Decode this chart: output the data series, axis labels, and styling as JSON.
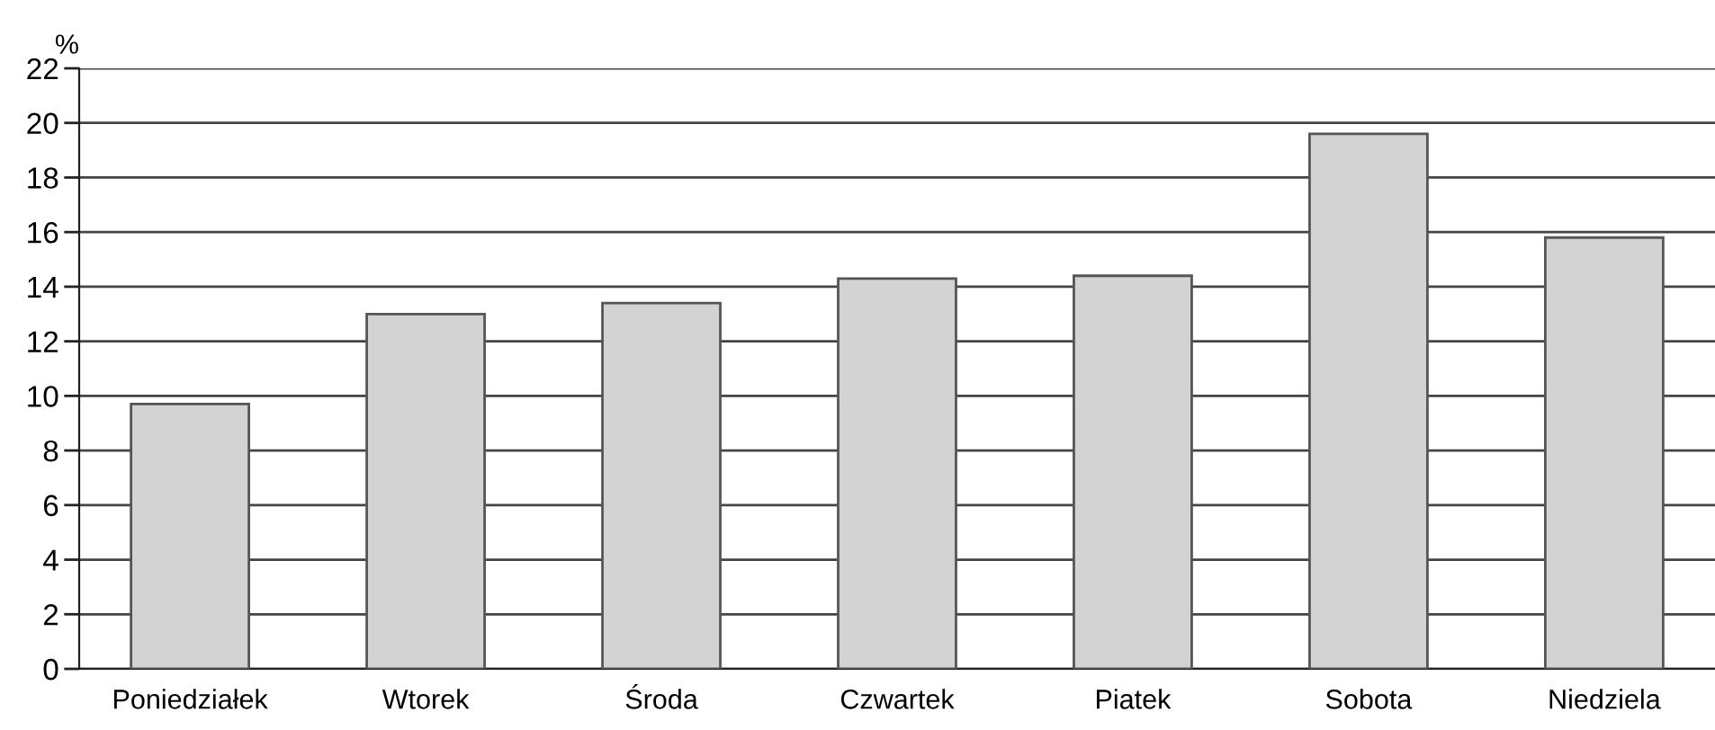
{
  "chart_data": {
    "type": "bar",
    "ylabel": "%",
    "categories": [
      "Poniedziałek",
      "Wtorek",
      "Środa",
      "Czwartek",
      "Piatek",
      "Sobota",
      "Niedziela"
    ],
    "values": [
      9.7,
      13.0,
      13.4,
      14.3,
      14.4,
      19.6,
      15.8
    ],
    "color": "#d3d3d3",
    "ylim": [
      0,
      22
    ],
    "yticks": [
      0,
      2,
      4,
      6,
      8,
      10,
      12,
      14,
      16,
      18,
      20,
      22
    ],
    "grid": "y"
  }
}
